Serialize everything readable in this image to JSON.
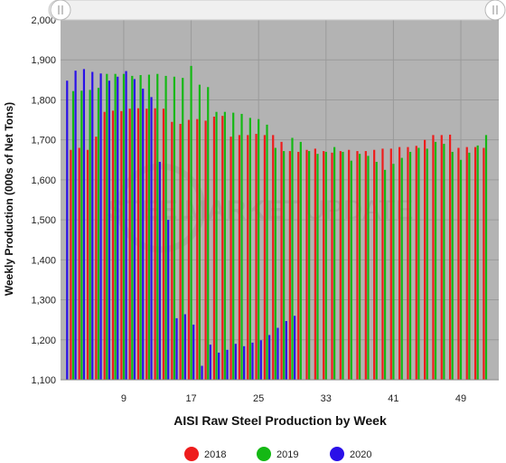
{
  "colors": {
    "s2018": "#ee1c1c",
    "s2019": "#14b814",
    "s2020": "#2a10e8",
    "plot_bg": "#b3b3b3",
    "grid": "#9a9a9a"
  },
  "watermark": {
    "line1": "STEEL",
    "line2": "MARKET",
    "line3": "UPDATE"
  },
  "chart_data": {
    "type": "bar",
    "xlabel": "AISI Raw Steel Production by Week",
    "ylabel": "Weekly Production (000s of Net Tons)",
    "ylim": [
      1100,
      2000
    ],
    "yticks": [
      "1,100",
      "1,200",
      "1,300",
      "1,400",
      "1,500",
      "1,600",
      "1,700",
      "1,800",
      "1,900",
      "2,000"
    ],
    "xlim": [
      2,
      53
    ],
    "xticks": [
      9,
      17,
      25,
      33,
      41,
      49
    ],
    "grid": true,
    "legend_position": "bottom",
    "series": [
      {
        "name": "2018",
        "x": [
          3,
          4,
          5,
          6,
          7,
          8,
          9,
          10,
          11,
          12,
          13,
          14,
          15,
          16,
          17,
          18,
          19,
          20,
          21,
          22,
          23,
          24,
          25,
          26,
          27,
          28,
          29,
          30,
          31,
          32,
          33,
          34,
          35,
          36,
          37,
          38,
          39,
          40,
          41,
          42,
          43,
          44,
          45,
          46,
          47,
          48,
          49,
          50,
          51,
          52
        ],
        "values": [
          1675,
          1680,
          1675,
          1708,
          1770,
          1773,
          1772,
          1778,
          1779,
          1778,
          1779,
          1778,
          1745,
          1740,
          1750,
          1752,
          1748,
          1758,
          1760,
          1708,
          1712,
          1712,
          1715,
          1712,
          1712,
          1695,
          1672,
          1670,
          1675,
          1678,
          1672,
          1668,
          1672,
          1675,
          1672,
          1672,
          1675,
          1678,
          1678,
          1682,
          1682,
          1685,
          1700,
          1712,
          1712,
          1713,
          1680,
          1682,
          1682,
          1680
        ]
      },
      {
        "name": "2019",
        "x": [
          3,
          4,
          5,
          6,
          7,
          8,
          9,
          10,
          11,
          12,
          13,
          14,
          15,
          16,
          17,
          18,
          19,
          20,
          21,
          22,
          23,
          24,
          25,
          26,
          27,
          28,
          29,
          30,
          31,
          32,
          33,
          34,
          35,
          36,
          37,
          38,
          39,
          40,
          41,
          42,
          43,
          44,
          45,
          46,
          47,
          48,
          49,
          50,
          51,
          52
        ],
        "values": [
          1822,
          1823,
          1825,
          1830,
          1865,
          1865,
          1865,
          1860,
          1862,
          1863,
          1865,
          1860,
          1858,
          1855,
          1885,
          1838,
          1832,
          1770,
          1770,
          1768,
          1765,
          1755,
          1752,
          1738,
          1680,
          1672,
          1705,
          1695,
          1672,
          1665,
          1670,
          1682,
          1670,
          1648,
          1665,
          1660,
          1645,
          1625,
          1640,
          1655,
          1670,
          1680,
          1678,
          1695,
          1690,
          1670,
          1650,
          1668,
          1686,
          1712
        ]
      },
      {
        "name": "2020",
        "x": [
          2,
          3,
          4,
          5,
          6,
          7,
          8,
          9,
          10,
          11,
          12,
          13,
          14,
          15,
          16,
          17,
          18,
          19,
          20,
          21,
          22,
          23,
          24,
          25,
          26,
          27,
          28,
          29
        ],
        "values": [
          1848,
          1873,
          1877,
          1870,
          1866,
          1848,
          1858,
          1872,
          1852,
          1828,
          1807,
          1645,
          1500,
          1254,
          1264,
          1238,
          1135,
          1188,
          1168,
          1175,
          1190,
          1184,
          1193,
          1199,
          1212,
          1230,
          1247,
          1260
        ]
      }
    ]
  }
}
